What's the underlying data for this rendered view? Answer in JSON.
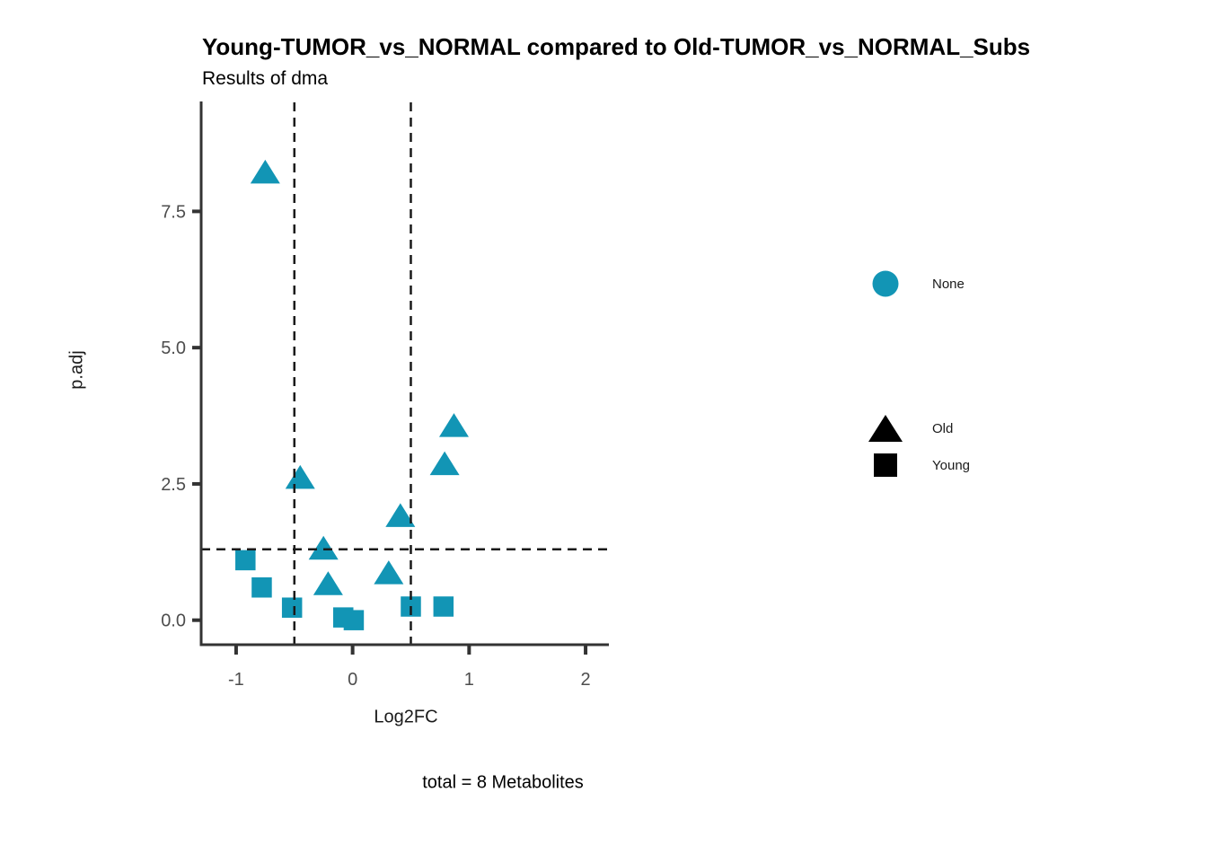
{
  "legend": {
    "color_legend": {
      "label": "None",
      "marker": "circle",
      "color": "#1295B5"
    },
    "shape_legend": [
      {
        "label": "Old",
        "marker": "triangle",
        "color": "#000000"
      },
      {
        "label": "Young",
        "marker": "square",
        "color": "#000000"
      }
    ]
  },
  "chart_data": {
    "type": "scatter",
    "title": "Young-TUMOR_vs_NORMAL compared to Old-TUMOR_vs_NORMAL_Subs",
    "subtitle": "Results of dma",
    "caption": "total = 8 Metabolites",
    "xlabel": "Log2FC",
    "ylabel": "p.adj",
    "xlim": [
      -1.3,
      2.2
    ],
    "ylim": [
      -0.45,
      9.5
    ],
    "xtick_values": [
      -1,
      0,
      1,
      2
    ],
    "xtick_labels": [
      "-1",
      "0",
      "1",
      "2"
    ],
    "ytick_values": [
      0,
      2.5,
      5,
      7.5
    ],
    "ytick_labels": [
      "0.0",
      "2.5",
      "5.0",
      "7.5"
    ],
    "vlines": [
      -0.5,
      0.5
    ],
    "hlines": [
      1.3
    ],
    "grid": false,
    "legend_position": "right",
    "point_color": "#1295B5",
    "threshold_line_color": "#1a1a1a",
    "axis_color": "#333333",
    "series": [
      {
        "name": "Old",
        "shape": "triangle",
        "points": [
          [
            -0.75,
            8.2
          ],
          [
            -0.45,
            2.6
          ],
          [
            0.87,
            3.55
          ],
          [
            0.79,
            2.85
          ],
          [
            0.41,
            1.9
          ],
          [
            -0.25,
            1.3
          ],
          [
            0.31,
            0.85
          ],
          [
            -0.21,
            0.65
          ]
        ]
      },
      {
        "name": "Young",
        "shape": "square",
        "points": [
          [
            -0.92,
            1.1
          ],
          [
            -0.78,
            0.6
          ],
          [
            -0.52,
            0.23
          ],
          [
            -0.08,
            0.05
          ],
          [
            0.01,
            0.0
          ],
          [
            0.5,
            0.25
          ],
          [
            0.78,
            0.25
          ]
        ]
      }
    ]
  }
}
